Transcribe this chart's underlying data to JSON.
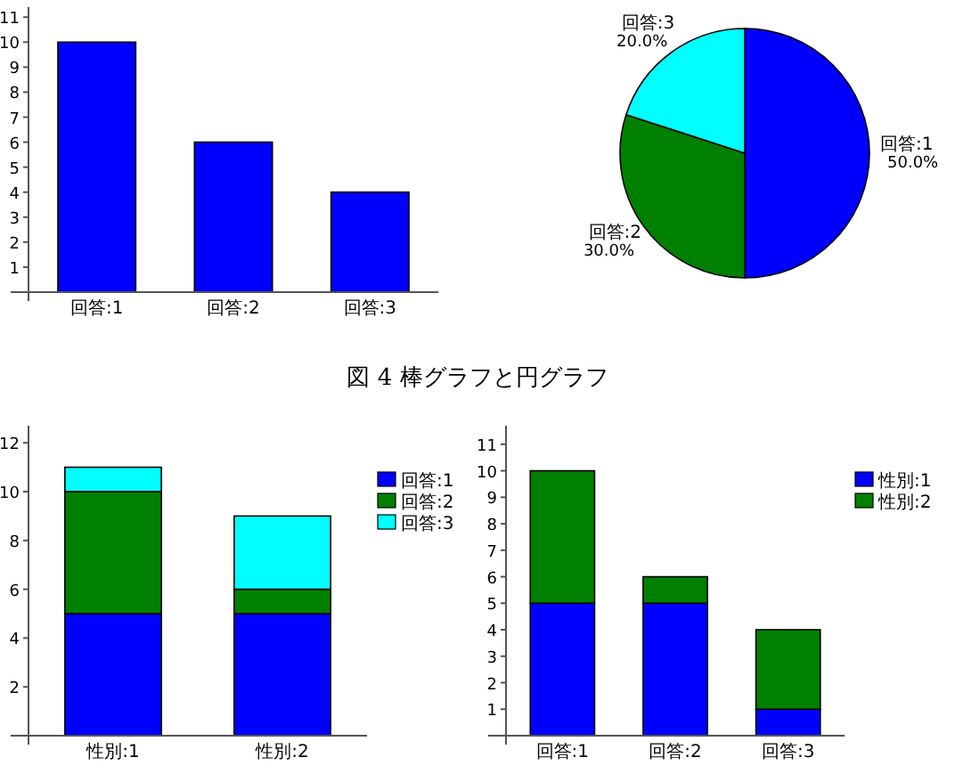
{
  "chart_data": [
    {
      "type": "bar",
      "categories": [
        "回答:1",
        "回答:2",
        "回答:3"
      ],
      "values": [
        10,
        6,
        4
      ],
      "color": "#0000ff",
      "ylim": [
        0,
        11.4
      ],
      "yticks": [
        1,
        2,
        3,
        4,
        5,
        6,
        7,
        8,
        9,
        10,
        11
      ],
      "grid": false,
      "legend": false
    },
    {
      "type": "pie",
      "categories": [
        "回答:1",
        "回答:2",
        "回答:3"
      ],
      "values": [
        50,
        30,
        20
      ],
      "value_labels": [
        "50.0%",
        "30.0%",
        "20.0%"
      ],
      "colors": [
        "#0000ff",
        "#008000",
        "#00ffff"
      ]
    },
    {
      "type": "other",
      "annotations": [
        "図 4 棒グラフと円グラフ"
      ]
    },
    {
      "type": "bar",
      "stacked": true,
      "categories": [
        "性別:1",
        "性別:2"
      ],
      "series": [
        {
          "name": "回答:1",
          "color": "#0000ff",
          "values": [
            5,
            5
          ]
        },
        {
          "name": "回答:2",
          "color": "#008000",
          "values": [
            5,
            1
          ]
        },
        {
          "name": "回答:3",
          "color": "#00ffff",
          "values": [
            1,
            3
          ]
        }
      ],
      "ylim": [
        0,
        12.7
      ],
      "yticks": [
        2,
        4,
        6,
        8,
        10,
        12
      ],
      "grid": false,
      "legend": "top right"
    },
    {
      "type": "bar",
      "stacked": true,
      "categories": [
        "回答:1",
        "回答:2",
        "回答:3"
      ],
      "series": [
        {
          "name": "性別:1",
          "color": "#0000ff",
          "values": [
            5,
            5,
            1
          ]
        },
        {
          "name": "性別:2",
          "color": "#008000",
          "values": [
            5,
            1,
            3
          ]
        }
      ],
      "ylim": [
        0,
        11.7
      ],
      "yticks": [
        1,
        2,
        3,
        4,
        5,
        6,
        7,
        8,
        9,
        10,
        11
      ],
      "grid": false,
      "legend": "top right"
    }
  ]
}
